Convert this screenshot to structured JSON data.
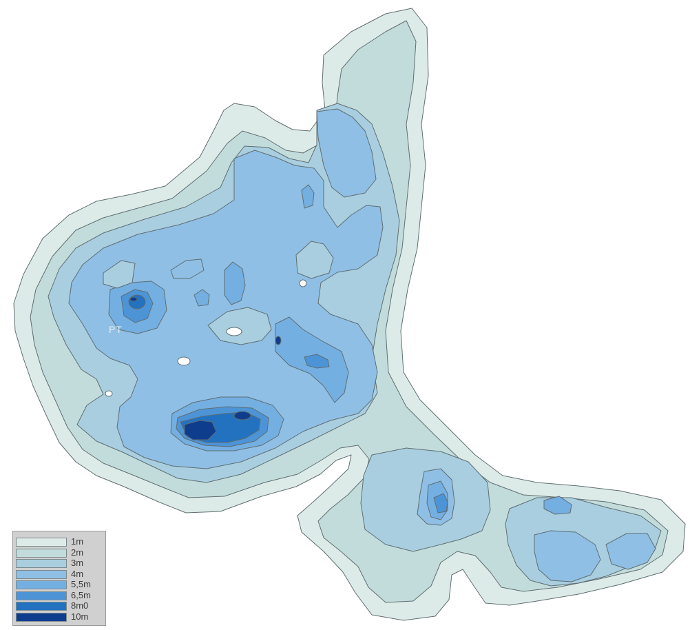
{
  "map": {
    "name_label": "PT",
    "colors": {
      "1m": "#dcebe8",
      "2m": "#c2dcdc",
      "3m": "#a8cee0",
      "4m": "#8fbfe5",
      "5_5m": "#74afe2",
      "6_5m": "#4d94d7",
      "8m0": "#2272c0",
      "10m": "#0f3d8e",
      "island": "#ffffff"
    }
  },
  "legend": {
    "items": [
      {
        "label": "1m",
        "color": "#dcebe8"
      },
      {
        "label": "2m",
        "color": "#c2dcdc"
      },
      {
        "label": "3m",
        "color": "#a8cee0"
      },
      {
        "label": "4m",
        "color": "#8fbfe5"
      },
      {
        "label": "5,5m",
        "color": "#74afe2"
      },
      {
        "label": "6,5m",
        "color": "#4d94d7"
      },
      {
        "label": "8m0",
        "color": "#2272c0"
      },
      {
        "label": "10m",
        "color": "#0f3d8e"
      }
    ]
  }
}
